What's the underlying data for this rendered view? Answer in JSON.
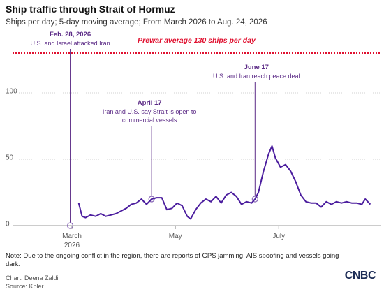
{
  "chart_data": {
    "type": "line",
    "title": "Ship traffic through Strait of Hormuz",
    "subtitle": "Ships per day; 5-day moving average; From March 2026 to Aug. 24, 2026",
    "x": [
      "2026-03-05",
      "2026-03-07",
      "2026-03-09",
      "2026-03-12",
      "2026-03-15",
      "2026-03-18",
      "2026-03-21",
      "2026-03-24",
      "2026-03-27",
      "2026-03-30",
      "2026-04-02",
      "2026-04-05",
      "2026-04-08",
      "2026-04-11",
      "2026-04-14",
      "2026-04-17",
      "2026-04-20",
      "2026-04-23",
      "2026-04-26",
      "2026-04-29",
      "2026-05-02",
      "2026-05-05",
      "2026-05-08",
      "2026-05-10",
      "2026-05-13",
      "2026-05-16",
      "2026-05-19",
      "2026-05-22",
      "2026-05-25",
      "2026-05-28",
      "2026-05-31",
      "2026-06-03",
      "2026-06-06",
      "2026-06-09",
      "2026-06-12",
      "2026-06-15",
      "2026-06-17",
      "2026-06-19",
      "2026-06-22",
      "2026-06-25",
      "2026-06-27",
      "2026-06-29",
      "2026-07-02",
      "2026-07-05",
      "2026-07-08",
      "2026-07-11",
      "2026-07-14",
      "2026-07-17",
      "2026-07-20",
      "2026-07-23",
      "2026-07-26",
      "2026-07-29",
      "2026-08-01",
      "2026-08-04",
      "2026-08-07",
      "2026-08-10",
      "2026-08-13",
      "2026-08-16",
      "2026-08-19",
      "2026-08-21",
      "2026-08-24"
    ],
    "series": [
      {
        "name": "Ships per day",
        "color": "#4b1d9e",
        "values": [
          17,
          7,
          6,
          8,
          7,
          9,
          7,
          8,
          9,
          11,
          13,
          16,
          17,
          20,
          16,
          20,
          21,
          21,
          12,
          13,
          17,
          15,
          7,
          5,
          12,
          17,
          20,
          18,
          22,
          17,
          23,
          25,
          22,
          16,
          18,
          17,
          20,
          25,
          41,
          54,
          60,
          51,
          44,
          46,
          41,
          33,
          23,
          18,
          17,
          17,
          14,
          18,
          16,
          18,
          17,
          18,
          17,
          17,
          16,
          20,
          16
        ]
      }
    ],
    "xlim": [
      "2026-01-25",
      "2026-08-30"
    ],
    "xticks": [
      {
        "value": "2026-03-01",
        "label": "March 2026"
      },
      {
        "value": "2026-05-01",
        "label": "May"
      },
      {
        "value": "2026-07-01",
        "label": "July"
      }
    ],
    "ylim": [
      0,
      135
    ],
    "yticks": [
      0,
      50,
      100
    ],
    "grid": true,
    "reference": {
      "value": 130,
      "label": "Prewar average 130 ships per day",
      "color": "#e0102f"
    },
    "annotations": [
      {
        "x": "2026-02-28",
        "y": 0,
        "date": "Feb. 28, 2026",
        "text": "U.S. and Israel attacked Iran"
      },
      {
        "x": "2026-04-17",
        "y": 20,
        "date": "April 17",
        "text": "Iran and U.S. say Strait is open to commercial vessels"
      },
      {
        "x": "2026-06-17",
        "y": 20,
        "date": "June 17",
        "text": "U.S. and Iran reach peace deal"
      }
    ]
  },
  "footer": {
    "note": "Note: Due to the ongoing conflict in the region, there are reports of GPS jamming, AIS spoofing and vessels going dark.",
    "credit": "Chart: Deena Zaldi",
    "source": "Source: Kpler",
    "logo": "CNBC"
  }
}
